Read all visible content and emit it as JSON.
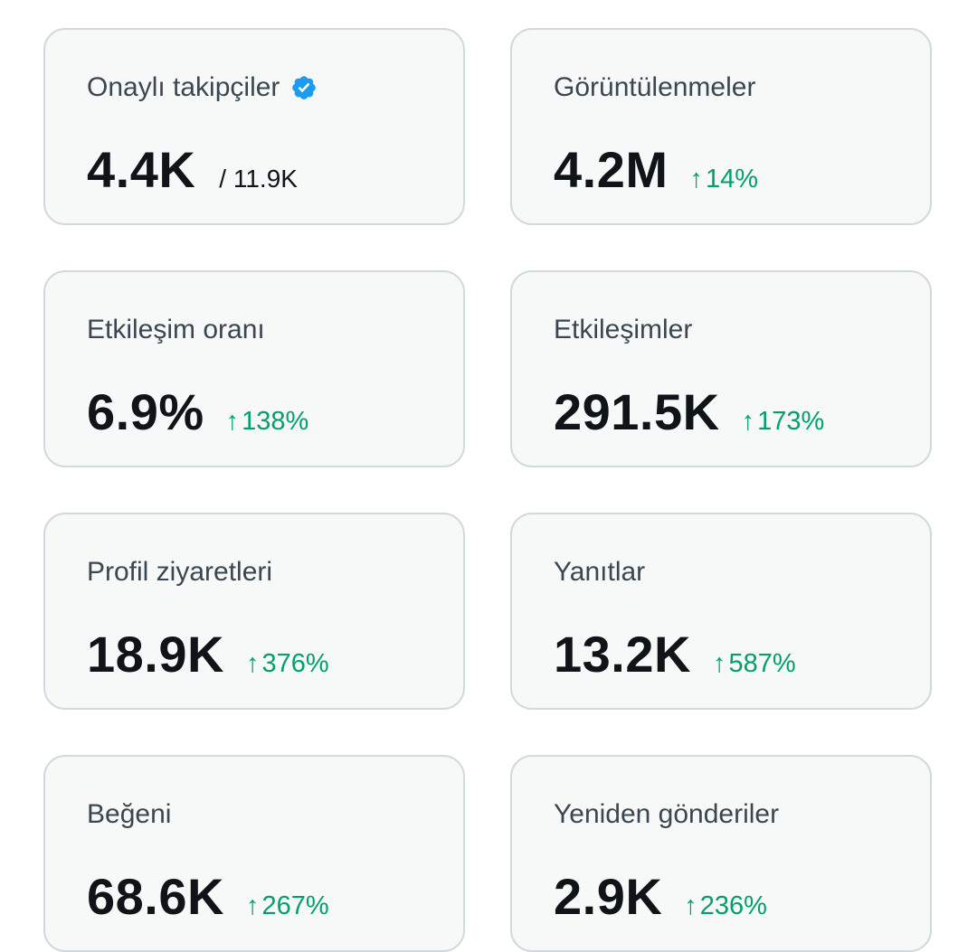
{
  "colors": {
    "card_background": "#f7f9f9",
    "card_border": "#cfd9de",
    "label": "#3a4750",
    "value": "#0f1419",
    "positive_change": "#00a06a",
    "verified_badge": "#1d9bf0"
  },
  "cards": [
    {
      "label": "Onaylı takipçiler",
      "value": "4.4K",
      "sub": "/ 11.9K",
      "icon": "verified-badge-icon"
    },
    {
      "label": "Görüntülenmeler",
      "value": "4.2M",
      "change": "14%",
      "change_icon": "arrow-up-icon"
    },
    {
      "label": "Etkileşim oranı",
      "value": "6.9%",
      "change": "138%",
      "change_icon": "arrow-up-icon"
    },
    {
      "label": "Etkileşimler",
      "value": "291.5K",
      "change": "173%",
      "change_icon": "arrow-up-icon"
    },
    {
      "label": "Profil ziyaretleri",
      "value": "18.9K",
      "change": "376%",
      "change_icon": "arrow-up-icon"
    },
    {
      "label": "Yanıtlar",
      "value": "13.2K",
      "change": "587%",
      "change_icon": "arrow-up-icon"
    },
    {
      "label": "Beğeni",
      "value": "68.6K",
      "change": "267%",
      "change_icon": "arrow-up-icon"
    },
    {
      "label": "Yeniden gönderiler",
      "value": "2.9K",
      "change": "236%",
      "change_icon": "arrow-up-icon"
    }
  ]
}
